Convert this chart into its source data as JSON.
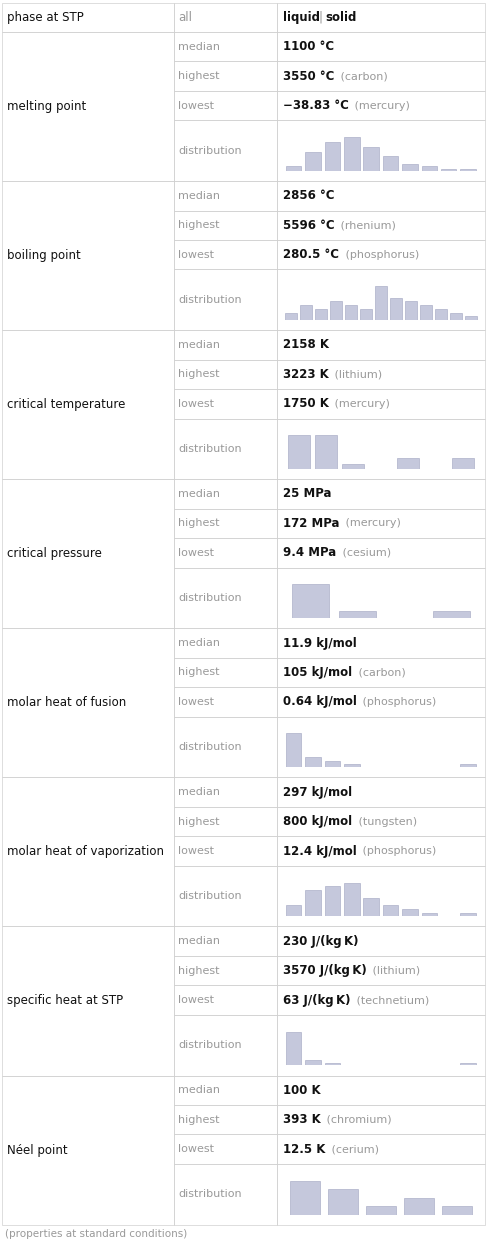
{
  "title_row": {
    "col1": "phase at STP",
    "col2": "all",
    "col3_liquid": "liquid",
    "col3_solid": "solid"
  },
  "properties": [
    {
      "name": "melting point",
      "rows": [
        {
          "label": "median",
          "bold_part": "1100 °C",
          "extra": ""
        },
        {
          "label": "highest",
          "bold_part": "3550 °C",
          "extra": " (carbon)"
        },
        {
          "label": "lowest",
          "bold_part": "−38.83 °C",
          "extra": " (mercury)"
        },
        {
          "label": "distribution",
          "type": "histogram",
          "bins": [
            2,
            8,
            12,
            14,
            10,
            6,
            3,
            2,
            1,
            1
          ]
        }
      ]
    },
    {
      "name": "boiling point",
      "rows": [
        {
          "label": "median",
          "bold_part": "2856 °C",
          "extra": ""
        },
        {
          "label": "highest",
          "bold_part": "5596 °C",
          "extra": " (rhenium)"
        },
        {
          "label": "lowest",
          "bold_part": "280.5 °C",
          "extra": " (phosphorus)"
        },
        {
          "label": "distribution",
          "type": "histogram",
          "bins": [
            2,
            4,
            3,
            5,
            4,
            3,
            9,
            6,
            5,
            4,
            3,
            2,
            1
          ]
        }
      ]
    },
    {
      "name": "critical temperature",
      "rows": [
        {
          "label": "median",
          "bold_part": "2158 K",
          "extra": ""
        },
        {
          "label": "highest",
          "bold_part": "3223 K",
          "extra": " (lithium)"
        },
        {
          "label": "lowest",
          "bold_part": "1750 K",
          "extra": " (mercury)"
        },
        {
          "label": "distribution",
          "type": "histogram",
          "bins": [
            6,
            6,
            1,
            0,
            2,
            0,
            2
          ]
        }
      ]
    },
    {
      "name": "critical pressure",
      "rows": [
        {
          "label": "median",
          "bold_part": "25 MPa",
          "extra": ""
        },
        {
          "label": "highest",
          "bold_part": "172 MPa",
          "extra": " (mercury)"
        },
        {
          "label": "lowest",
          "bold_part": "9.4 MPa",
          "extra": " (cesium)"
        },
        {
          "label": "distribution",
          "type": "histogram",
          "bins": [
            9,
            2,
            0,
            2
          ]
        }
      ]
    },
    {
      "name": "molar heat of fusion",
      "rows": [
        {
          "label": "median",
          "bold_part": "11.9 kJ/mol",
          "extra": ""
        },
        {
          "label": "highest",
          "bold_part": "105 kJ/mol",
          "extra": " (carbon)"
        },
        {
          "label": "lowest",
          "bold_part": "0.64 kJ/mol",
          "extra": " (phosphorus)"
        },
        {
          "label": "distribution",
          "type": "histogram",
          "bins": [
            10,
            3,
            2,
            1,
            0,
            0,
            0,
            0,
            0,
            1
          ]
        }
      ]
    },
    {
      "name": "molar heat of vaporization",
      "rows": [
        {
          "label": "median",
          "bold_part": "297 kJ/mol",
          "extra": ""
        },
        {
          "label": "highest",
          "bold_part": "800 kJ/mol",
          "extra": " (tungsten)"
        },
        {
          "label": "lowest",
          "bold_part": "12.4 kJ/mol",
          "extra": " (phosphorus)"
        },
        {
          "label": "distribution",
          "type": "histogram",
          "bins": [
            3,
            7,
            8,
            9,
            5,
            3,
            2,
            1,
            0,
            1
          ]
        }
      ]
    },
    {
      "name": "specific heat at STP",
      "rows": [
        {
          "label": "median",
          "bold_part": "230 J/(kg K)",
          "extra": ""
        },
        {
          "label": "highest",
          "bold_part": "3570 J/(kg K)",
          "extra": " (lithium)"
        },
        {
          "label": "lowest",
          "bold_part": "63 J/(kg K)",
          "extra": " (technetium)"
        },
        {
          "label": "distribution",
          "type": "histogram",
          "bins": [
            12,
            2,
            1,
            0,
            0,
            0,
            0,
            0,
            0,
            1
          ]
        }
      ]
    },
    {
      "name": "Néel point",
      "rows": [
        {
          "label": "median",
          "bold_part": "100 K",
          "extra": ""
        },
        {
          "label": "highest",
          "bold_part": "393 K",
          "extra": " (chromium)"
        },
        {
          "label": "lowest",
          "bold_part": "12.5 K",
          "extra": " (cerium)"
        },
        {
          "label": "distribution",
          "type": "histogram",
          "bins": [
            4,
            3,
            1,
            2,
            1
          ]
        }
      ]
    }
  ],
  "footer": "(properties at standard conditions)",
  "border_color": "#d0d0d0",
  "text_gray": "#999999",
  "text_dark": "#111111",
  "hist_color": "#c5c8dc",
  "hist_edge_color": "#a0a4c0"
}
